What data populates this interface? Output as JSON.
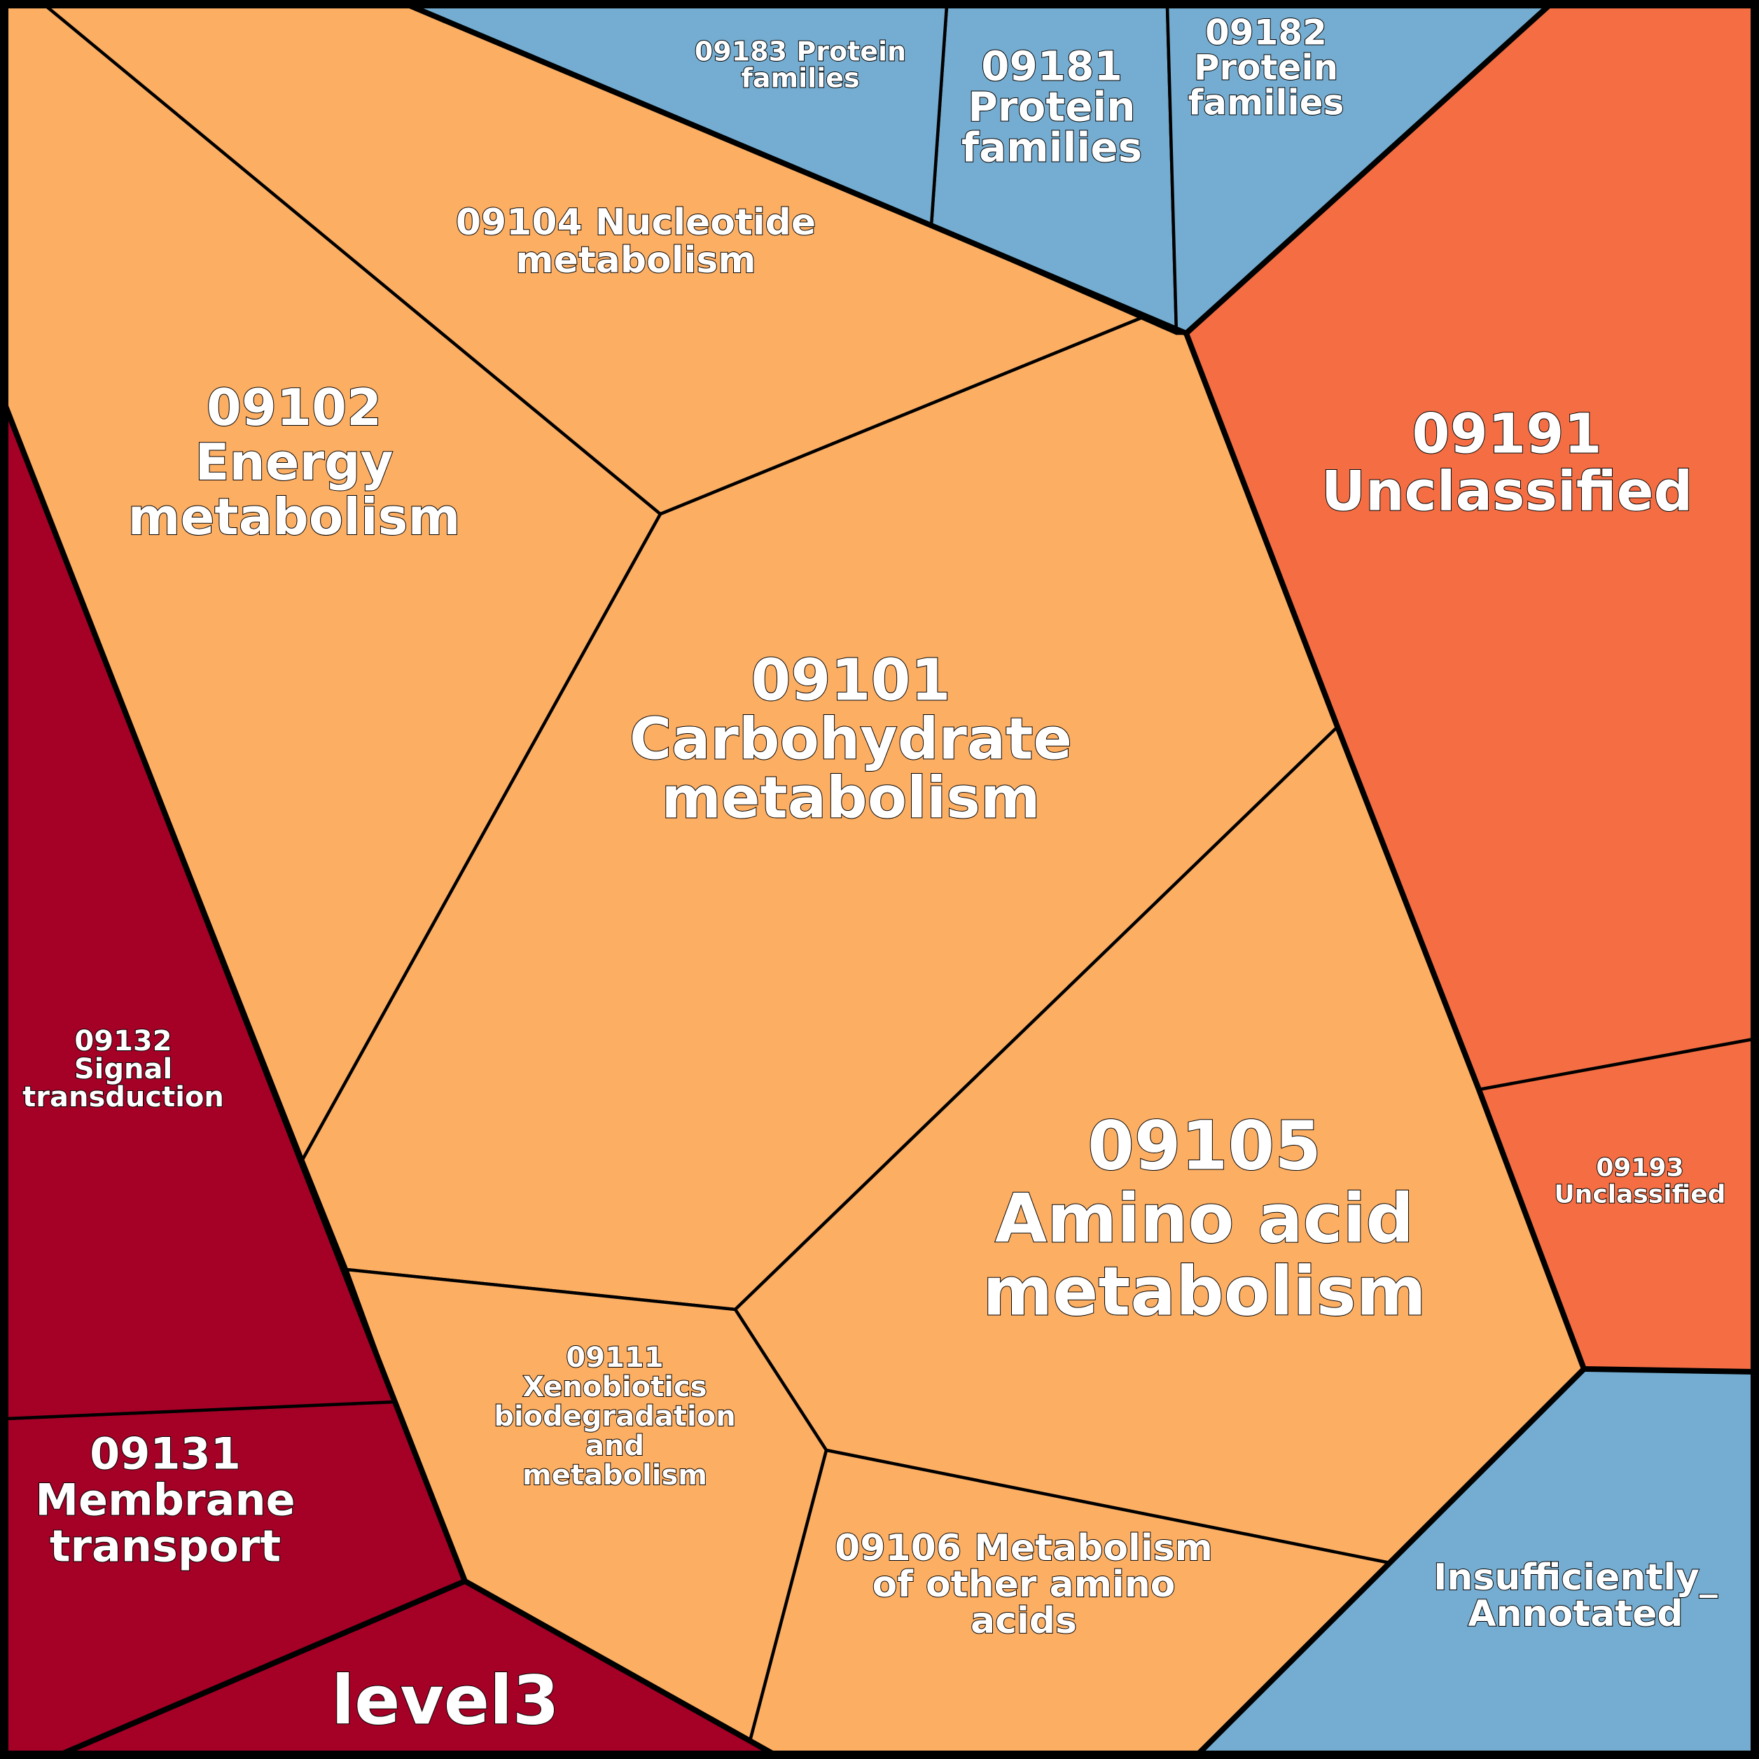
{
  "palette": {
    "metabolism": "#fcae63",
    "genetic_info": "#74add1",
    "unclassified": "#f46d43",
    "env_info": "#a50026",
    "border": "#000000",
    "text": "#ffffff"
  },
  "cells": [
    {
      "id": "09101",
      "color_key": "metabolism",
      "lines": [
        "09101",
        "Carbohydrate",
        "metabolism"
      ]
    },
    {
      "id": "09102",
      "color_key": "metabolism",
      "lines": [
        "09102",
        "Energy",
        "metabolism"
      ]
    },
    {
      "id": "09104",
      "color_key": "metabolism",
      "lines": [
        "09104 Nucleotide",
        "metabolism"
      ]
    },
    {
      "id": "09105",
      "color_key": "metabolism",
      "lines": [
        "09105",
        "Amino acid",
        "metabolism"
      ]
    },
    {
      "id": "09106",
      "color_key": "metabolism",
      "lines": [
        "09106 Metabolism",
        "of other amino",
        "acids"
      ]
    },
    {
      "id": "09111",
      "color_key": "metabolism",
      "lines": [
        "09111",
        "Xenobiotics",
        "biodegradation",
        "and",
        "metabolism"
      ]
    },
    {
      "id": "09181",
      "color_key": "genetic_info",
      "lines": [
        "09181",
        "Protein",
        "families"
      ]
    },
    {
      "id": "09182",
      "color_key": "genetic_info",
      "lines": [
        "09182",
        "Protein",
        "families"
      ]
    },
    {
      "id": "09183",
      "color_key": "genetic_info",
      "lines": [
        "09183 Protein",
        "families"
      ]
    },
    {
      "id": "insufficiently-annotated",
      "color_key": "genetic_info",
      "lines": [
        "Insufficiently_",
        "Annotated"
      ]
    },
    {
      "id": "09191",
      "color_key": "unclassified",
      "lines": [
        "09191",
        "Unclassified"
      ]
    },
    {
      "id": "09193",
      "color_key": "unclassified",
      "lines": [
        "09193",
        "Unclassified"
      ]
    },
    {
      "id": "09131",
      "color_key": "env_info",
      "lines": [
        "09131",
        "Membrane",
        "transport"
      ]
    },
    {
      "id": "09132",
      "color_key": "env_info",
      "lines": [
        "09132",
        "Signal",
        "transduction"
      ]
    },
    {
      "id": "level3",
      "color_key": "env_info",
      "lines": [
        "level3"
      ]
    }
  ]
}
